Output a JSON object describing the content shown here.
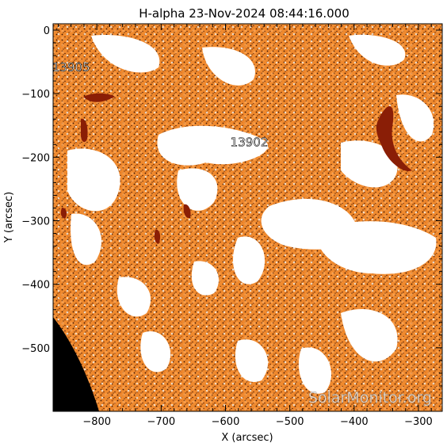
{
  "title": "H-alpha 23-Nov-2024 08:44:16.000",
  "x_axis": {
    "label": "X (arcsec)",
    "ticks": [
      "−800",
      "−700",
      "−600",
      "−500",
      "−400",
      "−300"
    ],
    "tick_values": [
      -800,
      -700,
      -600,
      -500,
      -400,
      -300
    ],
    "range": [
      -868,
      -263
    ]
  },
  "y_axis": {
    "label": "Y (arcsec)",
    "ticks": [
      "0",
      "−100",
      "−200",
      "−300",
      "−400",
      "−500"
    ],
    "tick_values": [
      0,
      -100,
      -200,
      -300,
      -400,
      -500
    ],
    "range": [
      -600,
      10
    ]
  },
  "regions": [
    {
      "label": "13905",
      "x": -840,
      "y": -65
    },
    {
      "label": "13902",
      "x": -563,
      "y": -183
    }
  ],
  "watermark": "SolarMonitor.org",
  "colors": {
    "chromosphere_orange": "#f08a2e",
    "plage_white": "#ffffff",
    "filament_dark": "#8a1e06",
    "background_sky": "#000000"
  }
}
